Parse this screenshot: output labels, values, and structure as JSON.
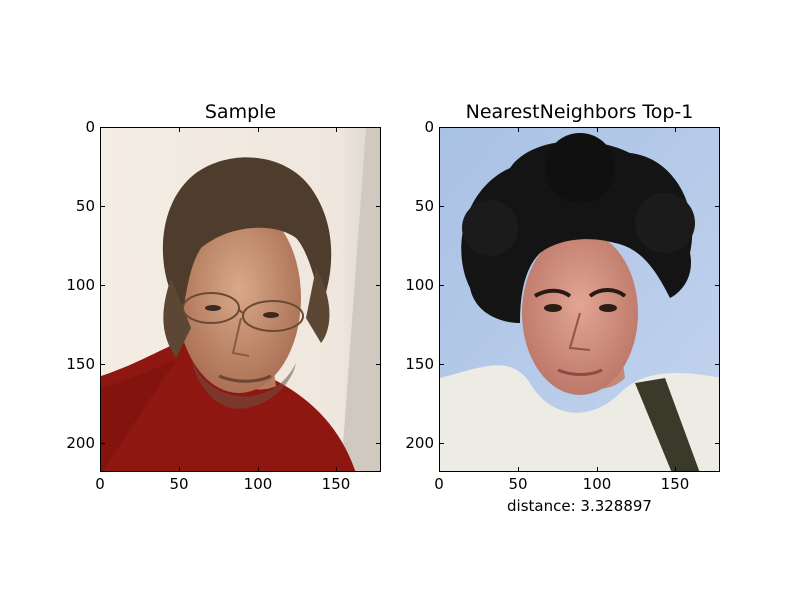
{
  "figure": {
    "left": {
      "title": "Sample",
      "yticks": [
        "0",
        "50",
        "100",
        "150",
        "200"
      ],
      "xticks": [
        "0",
        "50",
        "100",
        "150"
      ],
      "image": "photo of a man with shoulder-length brown hair, glasses, red sweater"
    },
    "right": {
      "title": "NearestNeighbors Top-1",
      "yticks": [
        "0",
        "50",
        "100",
        "150",
        "200"
      ],
      "xticks": [
        "0",
        "50",
        "100",
        "150"
      ],
      "image": "photo of a young man with dark curly hair, white t-shirt, blue background",
      "caption": "distance: 3.328897"
    }
  }
}
